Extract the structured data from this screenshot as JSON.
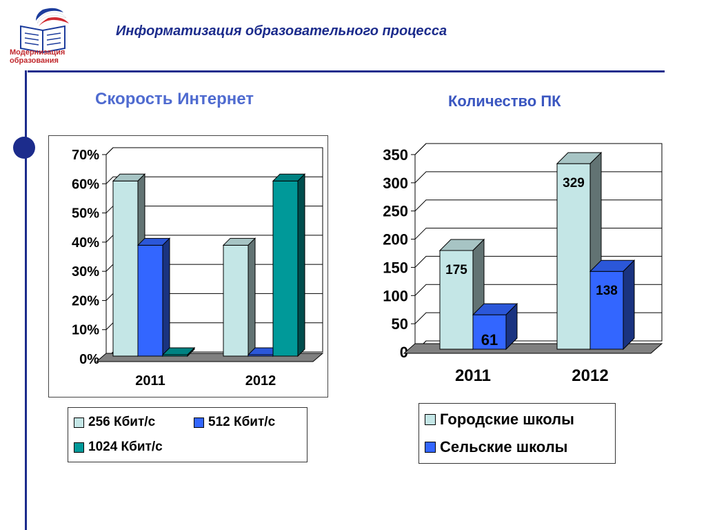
{
  "header": {
    "title": "Информатизация образовательного процесса",
    "logo_text_line1": "Модернизация",
    "logo_text_line2": "образования"
  },
  "colors": {
    "accent": "#1c2c8c",
    "title_blue": "#4f6bd0",
    "light_cyan": "#c4e6e6",
    "blue": "#3366ff",
    "teal": "#009999"
  },
  "chart_data": [
    {
      "type": "bar",
      "title": "Скорость Интернет",
      "categories": [
        "2011",
        "2012"
      ],
      "series": [
        {
          "name": "256 Кбит/с",
          "color": "#c4e6e6",
          "values": [
            60,
            38
          ]
        },
        {
          "name": "512 Кбит/с",
          "color": "#3366ff",
          "values": [
            38,
            0
          ]
        },
        {
          "name": "1024 Кбит/с",
          "color": "#009999",
          "values": [
            0,
            60
          ]
        }
      ],
      "yticks": [
        "0%",
        "10%",
        "20%",
        "30%",
        "40%",
        "50%",
        "60%",
        "70%"
      ],
      "ylim": [
        0,
        70
      ],
      "unit": "%",
      "grid": true,
      "legend": "bottom"
    },
    {
      "type": "bar",
      "title": "Количество ПК",
      "categories": [
        "2011",
        "2012"
      ],
      "series": [
        {
          "name": "Городские школы",
          "color": "#c4e6e6",
          "values": [
            175,
            329
          ]
        },
        {
          "name": "Сельские школы",
          "color": "#3366ff",
          "values": [
            61,
            138
          ]
        }
      ],
      "data_labels": [
        "175",
        "329",
        "61",
        "138"
      ],
      "yticks": [
        "0",
        "50",
        "100",
        "150",
        "200",
        "250",
        "300",
        "350"
      ],
      "ylim": [
        0,
        350
      ],
      "grid": true,
      "legend": "bottom"
    }
  ]
}
